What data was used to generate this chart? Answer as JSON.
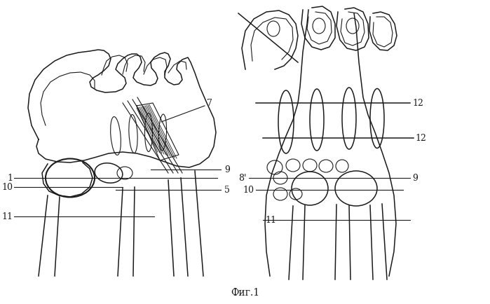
{
  "title": "Фиг.1",
  "bg_color": "#ffffff",
  "line_color": "#1a1a1a",
  "fig_width": 6.99,
  "fig_height": 4.35,
  "dpi": 100
}
